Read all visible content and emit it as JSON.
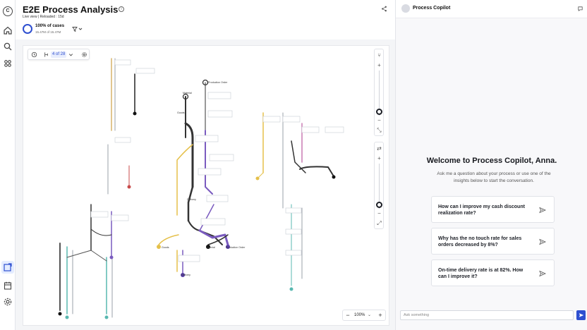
{
  "app": {
    "title": "E2E Process Analysis",
    "subtitle": "Live view | Reloaded : 15d",
    "cases_percent": "100% of cases",
    "cases_count": "15.47M of 15.47M",
    "cases_fraction": 1.0,
    "accent": "#2e4fd0"
  },
  "rail": {
    "logo_letter": "C",
    "items": [
      "home-icon",
      "search-icon",
      "apps-icon",
      "process-explorer-icon",
      "calendar-icon",
      "settings-icon"
    ]
  },
  "canvas": {
    "variant_label": "4 of 28",
    "zoom": "100%",
    "zoom_out": "−",
    "zoom_in": "+"
  },
  "graph": {
    "node_labels": [
      "Production Order",
      "Material",
      "Goods",
      "Delivery",
      "Goods",
      "Material",
      "Production Order",
      "Delivery"
    ]
  },
  "copilot": {
    "title": "Process Copilot",
    "welcome": "Welcome to Process Copilot, Anna.",
    "intro": "Ask me a question about your process or use one of the insights below to start the conversation.",
    "suggestions": [
      "How can I improve my cash discount realization rate?",
      "Why has the no touch rate for sales orders decreased by 8%?",
      "On-time delivery rate is at 82%. How can I improve it?"
    ],
    "input_placeholder": "Ask something"
  }
}
